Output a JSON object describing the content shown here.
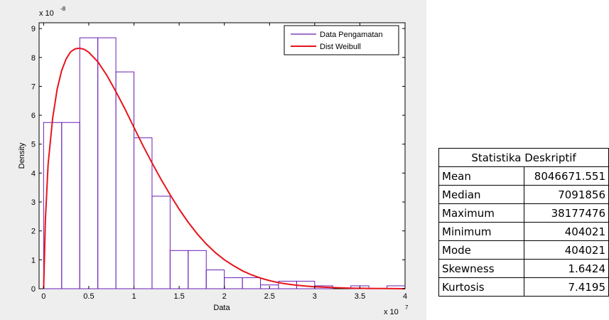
{
  "chart_data": {
    "type": "histogram",
    "xlabel": "Data",
    "ylabel": "Density",
    "x_multiplier": "x 10",
    "x_multiplier_exp": "7",
    "y_multiplier": "x 10",
    "y_multiplier_exp": "-8",
    "xlim": [
      -0.05,
      4.0
    ],
    "ylim": [
      0,
      9.2
    ],
    "x_ticks": [
      0,
      0.5,
      1,
      1.5,
      2,
      2.5,
      3,
      3.5,
      4
    ],
    "x_tick_labels": [
      "0",
      "0.5",
      "1",
      "1.5",
      "2",
      "2.5",
      "3",
      "3.5",
      "4"
    ],
    "y_ticks": [
      0,
      1,
      2,
      3,
      4,
      5,
      6,
      7,
      8,
      9
    ],
    "y_tick_labels": [
      "0",
      "1",
      "2",
      "3",
      "4",
      "5",
      "6",
      "7",
      "8",
      "9"
    ],
    "grid": false,
    "legend_position": "top-right",
    "series": [
      {
        "name": "Data Pengamatan",
        "kind": "histogram",
        "color": "#6a1fb5",
        "bins": [
          {
            "x0": 0.0,
            "x1": 0.2,
            "y": 5.75
          },
          {
            "x0": 0.2,
            "x1": 0.4,
            "y": 5.75
          },
          {
            "x0": 0.4,
            "x1": 0.6,
            "y": 8.68
          },
          {
            "x0": 0.6,
            "x1": 0.8,
            "y": 8.68
          },
          {
            "x0": 0.8,
            "x1": 1.0,
            "y": 7.5
          },
          {
            "x0": 1.0,
            "x1": 1.2,
            "y": 5.22
          },
          {
            "x0": 1.2,
            "x1": 1.4,
            "y": 3.2
          },
          {
            "x0": 1.4,
            "x1": 1.6,
            "y": 1.32
          },
          {
            "x0": 1.6,
            "x1": 1.8,
            "y": 1.32
          },
          {
            "x0": 1.8,
            "x1": 2.0,
            "y": 0.65
          },
          {
            "x0": 2.0,
            "x1": 2.2,
            "y": 0.38
          },
          {
            "x0": 2.2,
            "x1": 2.4,
            "y": 0.38
          },
          {
            "x0": 2.4,
            "x1": 2.6,
            "y": 0.13
          },
          {
            "x0": 2.6,
            "x1": 2.8,
            "y": 0.26
          },
          {
            "x0": 2.8,
            "x1": 3.0,
            "y": 0.26
          },
          {
            "x0": 3.0,
            "x1": 3.2,
            "y": 0.1
          },
          {
            "x0": 3.2,
            "x1": 3.4,
            "y": 0.0
          },
          {
            "x0": 3.4,
            "x1": 3.6,
            "y": 0.1
          },
          {
            "x0": 3.6,
            "x1": 3.8,
            "y": 0.0
          },
          {
            "x0": 3.8,
            "x1": 4.0,
            "y": 0.1
          }
        ]
      },
      {
        "name": "Dist Weibull",
        "kind": "line",
        "color": "#e8141b",
        "points": [
          [
            0.0,
            0.0
          ],
          [
            0.02,
            2.4
          ],
          [
            0.05,
            4.3
          ],
          [
            0.1,
            5.9
          ],
          [
            0.15,
            6.9
          ],
          [
            0.2,
            7.55
          ],
          [
            0.25,
            7.95
          ],
          [
            0.3,
            8.2
          ],
          [
            0.35,
            8.3
          ],
          [
            0.4,
            8.32
          ],
          [
            0.45,
            8.28
          ],
          [
            0.5,
            8.18
          ],
          [
            0.6,
            7.85
          ],
          [
            0.7,
            7.38
          ],
          [
            0.8,
            6.82
          ],
          [
            0.9,
            6.22
          ],
          [
            1.0,
            5.58
          ],
          [
            1.1,
            4.95
          ],
          [
            1.2,
            4.35
          ],
          [
            1.3,
            3.78
          ],
          [
            1.4,
            3.25
          ],
          [
            1.5,
            2.75
          ],
          [
            1.6,
            2.3
          ],
          [
            1.7,
            1.9
          ],
          [
            1.8,
            1.55
          ],
          [
            1.9,
            1.25
          ],
          [
            2.0,
            1.0
          ],
          [
            2.1,
            0.8
          ],
          [
            2.2,
            0.62
          ],
          [
            2.3,
            0.48
          ],
          [
            2.4,
            0.37
          ],
          [
            2.5,
            0.28
          ],
          [
            2.6,
            0.21
          ],
          [
            2.7,
            0.16
          ],
          [
            2.8,
            0.12
          ],
          [
            2.9,
            0.09
          ],
          [
            3.0,
            0.07
          ],
          [
            3.2,
            0.04
          ],
          [
            3.4,
            0.02
          ],
          [
            3.6,
            0.01
          ],
          [
            3.8,
            0.005
          ],
          [
            4.0,
            0.0
          ]
        ]
      }
    ]
  },
  "stats_table": {
    "title": "Statistika Deskriptif",
    "rows": [
      {
        "label": "Mean",
        "value": "8046671.551"
      },
      {
        "label": "Median",
        "value": "7091856"
      },
      {
        "label": "Maximum",
        "value": "38177476"
      },
      {
        "label": "Minimum",
        "value": "404021"
      },
      {
        "label": "Mode",
        "value": "404021"
      },
      {
        "label": "Skewness",
        "value": "1.6424"
      },
      {
        "label": "Kurtosis",
        "value": "7.4195"
      }
    ]
  }
}
